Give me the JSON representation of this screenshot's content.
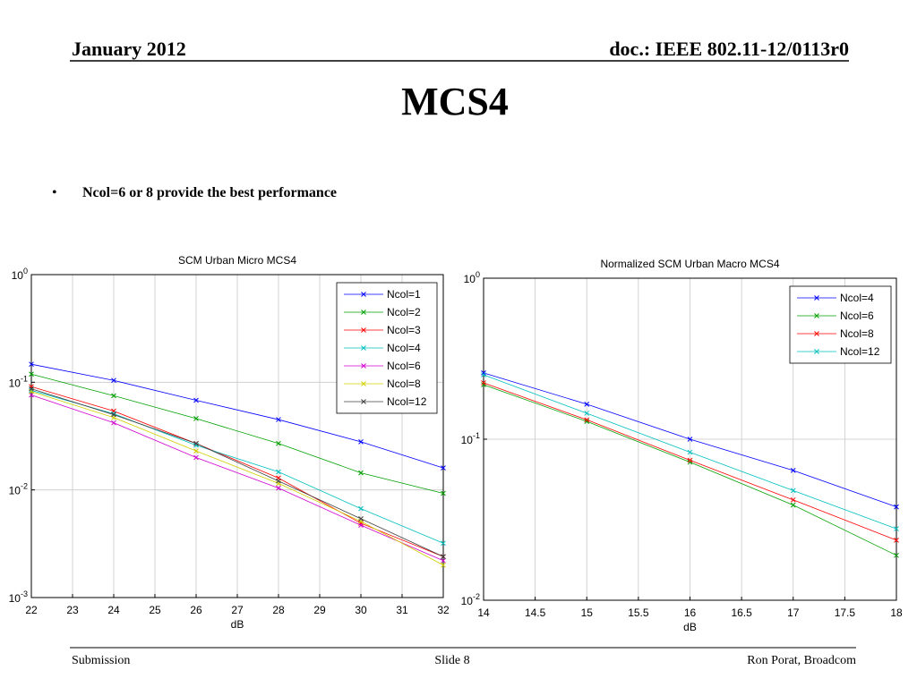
{
  "header": {
    "date": "January 2012",
    "doc": "doc.: IEEE 802.11-12/0113r0"
  },
  "title": "MCS4",
  "bullets": [
    "Ncol=6 or 8 provide the best performance"
  ],
  "footer": {
    "left": "Submission",
    "center": "Slide 8",
    "right": "Ron Porat, Broadcom"
  },
  "chart_data": [
    {
      "type": "line",
      "title": "SCM Urban Micro MCS4",
      "x_label": "dB",
      "x": [
        22,
        24,
        26,
        28,
        30,
        32
      ],
      "xlim": [
        22,
        32
      ],
      "xticks": [
        22,
        23,
        24,
        25,
        26,
        27,
        28,
        29,
        30,
        31,
        32
      ],
      "ylim": [
        0.001,
        1
      ],
      "yscale": "log",
      "yticks": [
        {
          "value": 0.001,
          "label": "10^-3"
        },
        {
          "value": 0.01,
          "label": "10^-2"
        },
        {
          "value": 0.1,
          "label": "10^-1"
        },
        {
          "value": 1,
          "label": "10^0"
        }
      ],
      "grid": true,
      "legend": "upper right",
      "series": [
        {
          "name": "Ncol=1",
          "color": "#0000ff",
          "values": [
            0.147,
            0.104,
            0.068,
            0.045,
            0.028,
            0.016
          ]
        },
        {
          "name": "Ncol=2",
          "color": "#00a000",
          "values": [
            0.119,
            0.075,
            0.046,
            0.027,
            0.0144,
            0.0093
          ]
        },
        {
          "name": "Ncol=3",
          "color": "#ff0000",
          "values": [
            0.091,
            0.054,
            0.027,
            0.0129,
            0.0049,
            0.0024
          ]
        },
        {
          "name": "Ncol=4",
          "color": "#00bfbf",
          "values": [
            0.084,
            0.051,
            0.026,
            0.0147,
            0.0067,
            0.0032
          ]
        },
        {
          "name": "Ncol=6",
          "color": "#d000d0",
          "values": [
            0.076,
            0.042,
            0.02,
            0.0104,
            0.0047,
            0.0022
          ]
        },
        {
          "name": "Ncol=8",
          "color": "#d0d000",
          "values": [
            0.082,
            0.047,
            0.023,
            0.0115,
            0.0051,
            0.002
          ]
        },
        {
          "name": "Ncol=12",
          "color": "#404040",
          "values": [
            0.087,
            0.05,
            0.027,
            0.0121,
            0.0054,
            0.0024
          ]
        }
      ]
    },
    {
      "type": "line",
      "title": "Normalized SCM Urban Macro MCS4",
      "x_label": "dB",
      "x": [
        14,
        15,
        16,
        17,
        18
      ],
      "xlim": [
        14,
        18
      ],
      "xticks": [
        14,
        14.5,
        15,
        15.5,
        16,
        16.5,
        17,
        17.5,
        18
      ],
      "ylim": [
        0.01,
        1
      ],
      "yscale": "log",
      "yticks": [
        {
          "value": 0.01,
          "label": "10^-2"
        },
        {
          "value": 0.1,
          "label": "10^-1"
        },
        {
          "value": 1,
          "label": "10^0"
        }
      ],
      "grid": true,
      "legend": "upper right",
      "series": [
        {
          "name": "Ncol=4",
          "color": "#0000ff",
          "values": [
            0.258,
            0.165,
            0.1,
            0.064,
            0.038
          ]
        },
        {
          "name": "Ncol=6",
          "color": "#00a000",
          "values": [
            0.218,
            0.129,
            0.072,
            0.039,
            0.019
          ]
        },
        {
          "name": "Ncol=8",
          "color": "#ff0000",
          "values": [
            0.224,
            0.132,
            0.074,
            0.042,
            0.0236
          ]
        },
        {
          "name": "Ncol=12",
          "color": "#00bfbf",
          "values": [
            0.251,
            0.145,
            0.083,
            0.048,
            0.0278
          ]
        }
      ]
    }
  ]
}
